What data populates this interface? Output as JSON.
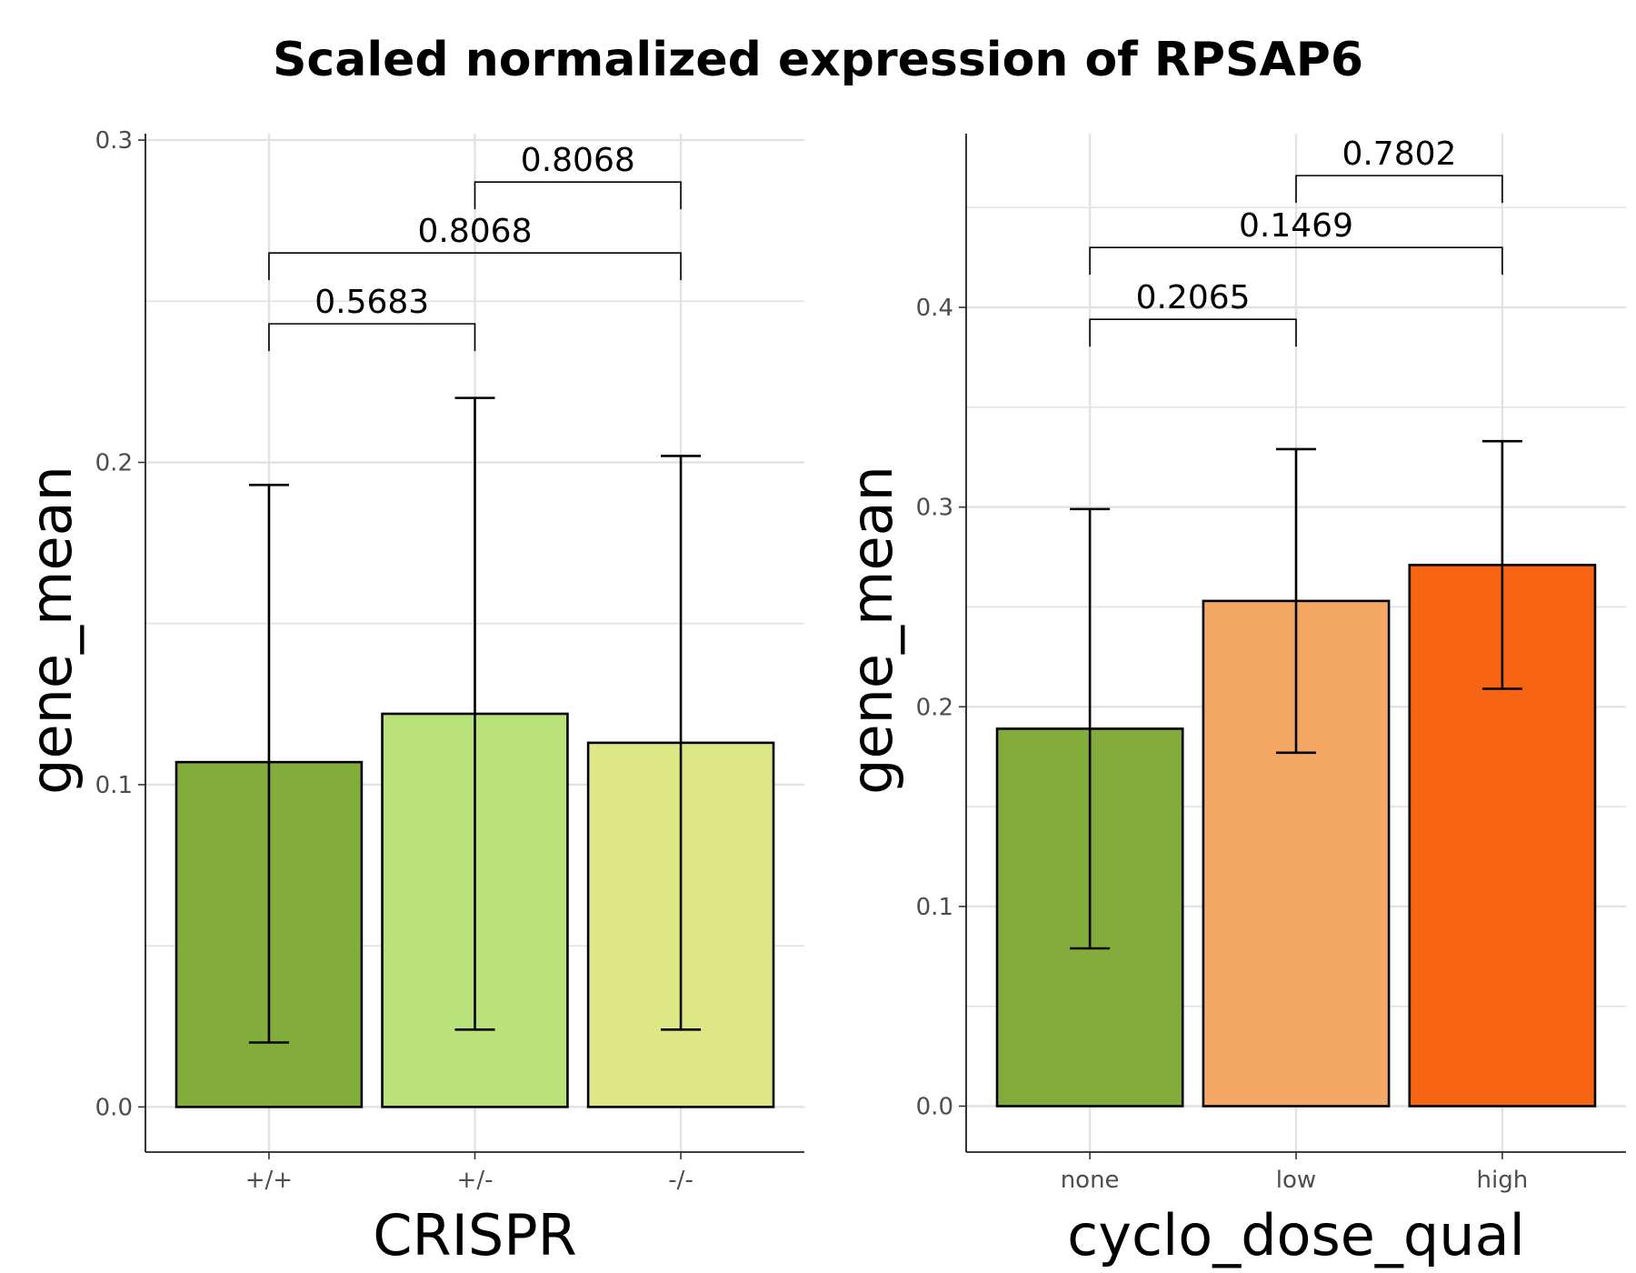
{
  "title": "Scaled normalized expression of RPSAP6",
  "chart_data": [
    {
      "type": "bar",
      "xlabel": "CRISPR",
      "ylabel": "gene_mean",
      "categories": [
        "+/+",
        "+/-",
        "-/-"
      ],
      "values": [
        0.107,
        0.122,
        0.113
      ],
      "error_low": [
        0.02,
        0.024,
        0.024
      ],
      "error_high": [
        0.193,
        0.22,
        0.202
      ],
      "colors": [
        "#82ad3c",
        "#b9e27a",
        "#dde785"
      ],
      "yticks": [
        0.0,
        0.1,
        0.2,
        0.3
      ],
      "yticklabels": [
        "0.0",
        "0.1",
        "0.2",
        "0.3"
      ],
      "ylim": [
        -0.014,
        0.302
      ],
      "comparisons": [
        {
          "from": 0,
          "to": 1,
          "label": "0.5683",
          "y": 0.243
        },
        {
          "from": 0,
          "to": 2,
          "label": "0.8068",
          "y": 0.265
        },
        {
          "from": 1,
          "to": 2,
          "label": "0.8068",
          "y": 0.287
        }
      ],
      "grid": true
    },
    {
      "type": "bar",
      "xlabel": "cyclo_dose_qual",
      "ylabel": "gene_mean",
      "categories": [
        "none",
        "low",
        "high"
      ],
      "values": [
        0.189,
        0.253,
        0.271
      ],
      "error_low": [
        0.079,
        0.177,
        0.209
      ],
      "error_high": [
        0.299,
        0.329,
        0.333
      ],
      "colors": [
        "#82ad3c",
        "#f5a766",
        "#f76414"
      ],
      "yticks": [
        0.0,
        0.1,
        0.2,
        0.3,
        0.4
      ],
      "yticklabels": [
        "0.0",
        "0.1",
        "0.2",
        "0.3",
        "0.4"
      ],
      "ylim": [
        -0.023,
        0.487
      ],
      "comparisons": [
        {
          "from": 0,
          "to": 1,
          "label": "0.2065",
          "y": 0.394
        },
        {
          "from": 0,
          "to": 2,
          "label": "0.1469",
          "y": 0.43
        },
        {
          "from": 1,
          "to": 2,
          "label": "0.7802",
          "y": 0.466
        }
      ],
      "grid": true
    }
  ]
}
